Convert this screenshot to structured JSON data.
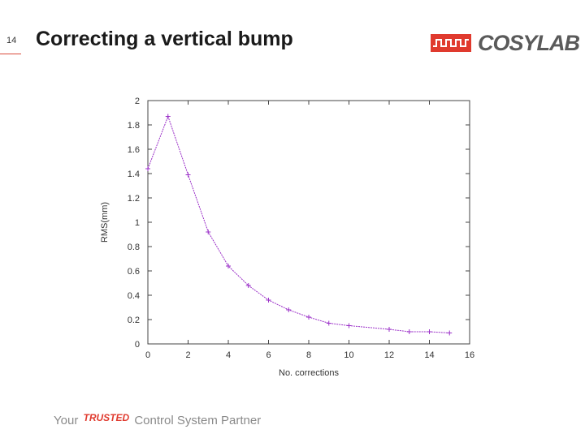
{
  "slide": {
    "number": "14",
    "title": "Correcting a vertical bump"
  },
  "logo": {
    "text": "COSYLAB",
    "accent_color": "#e03a2e"
  },
  "footer": {
    "tagline_prefix": "Your",
    "tagline_emphasis": "TRUSTED",
    "tagline_suffix": "Control System Partner"
  },
  "chart_data": {
    "type": "line",
    "title": "",
    "xlabel": "No. corrections",
    "ylabel": "RMS(mm)",
    "xlim": [
      0,
      16
    ],
    "ylim": [
      0,
      2
    ],
    "x_ticks": [
      0,
      2,
      4,
      6,
      8,
      10,
      12,
      14,
      16
    ],
    "y_ticks": [
      0,
      0.2,
      0.4,
      0.6,
      0.8,
      1,
      1.2,
      1.4,
      1.6,
      1.8,
      2
    ],
    "x_tick_labels": [
      "0",
      "2",
      "4",
      "6",
      "8",
      "10",
      "12",
      "14",
      "16"
    ],
    "y_tick_labels": [
      "0",
      "0.2",
      "0.4",
      "0.6",
      "0.8",
      "1",
      "1.2",
      "1.4",
      "1.6",
      "1.8",
      "2"
    ],
    "grid": false,
    "line_color": "#9b30c8",
    "series": [
      {
        "x": [
          0,
          1,
          2,
          3,
          4,
          5,
          6,
          7,
          8,
          9,
          10,
          12,
          13,
          14,
          15
        ],
        "y": [
          1.44,
          1.87,
          1.39,
          0.92,
          0.64,
          0.48,
          0.36,
          0.28,
          0.22,
          0.17,
          0.15,
          0.12,
          0.1,
          0.1,
          0.09
        ]
      }
    ]
  }
}
